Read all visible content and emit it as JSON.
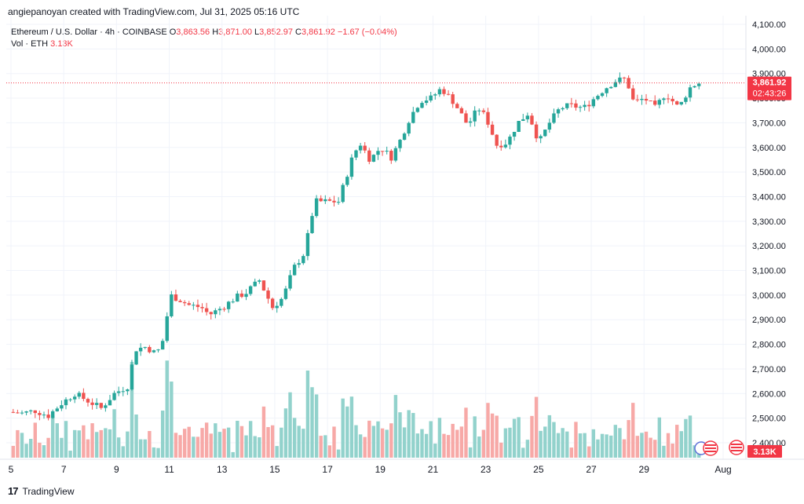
{
  "creator_line": "angiepanoyan created with TradingView.com, Jul 31, 2025 05:16 UTC",
  "legend": {
    "symbol": "Ethereum / U.S. Dollar · 4h · COINBASE",
    "o_label": "O",
    "o": "3,863.56",
    "h_label": "H",
    "h": "3,871.00",
    "l_label": "L",
    "l": "3,852.97",
    "c_label": "C",
    "c": "3,861.92",
    "change": "−1.67 (−0.04%)",
    "vol_label": "Vol · ETH",
    "vol": "3.13K"
  },
  "footer": {
    "brand": "TradingView",
    "logo_text": "17"
  },
  "colors": {
    "up": "#26a69a",
    "down": "#ef5350",
    "up_vol": "#92d2cc",
    "down_vol": "#f7a9a7",
    "price_line": "#f23645"
  },
  "chart_data": {
    "type": "candlestick",
    "interval": "4h",
    "y_axis": {
      "min": 2400,
      "max": 4100,
      "ticks": [
        "4,100.00",
        "4,000.00",
        "3,900.00",
        "3,800.00",
        "3,700.00",
        "3,600.00",
        "3,500.00",
        "3,400.00",
        "3,300.00",
        "3,200.00",
        "3,100.00",
        "3,000.00",
        "2,900.00",
        "2,800.00",
        "2,700.00",
        "2,600.00",
        "2,500.00",
        "2,400.00"
      ]
    },
    "x_ticks": [
      "5",
      "7",
      "9",
      "11",
      "13",
      "15",
      "17",
      "19",
      "21",
      "23",
      "25",
      "27",
      "29",
      "Aug"
    ],
    "x_tick_days": [
      5,
      7,
      9,
      11,
      13,
      15,
      17,
      19,
      21,
      23,
      25,
      27,
      29,
      32
    ],
    "x_range_days": [
      5,
      32.4
    ],
    "last_price": {
      "value": 3861.92,
      "label": "3,861.92",
      "countdown": "02:43:26"
    },
    "volume_label": "3.13K",
    "anchors": [
      [
        5.0,
        2525
      ],
      [
        5.5,
        2520
      ],
      [
        6.0,
        2530
      ],
      [
        6.5,
        2510
      ],
      [
        7.0,
        2560
      ],
      [
        7.5,
        2600
      ],
      [
        8.0,
        2570
      ],
      [
        8.5,
        2540
      ],
      [
        9.0,
        2600
      ],
      [
        9.5,
        2630
      ],
      [
        9.8,
        2780
      ],
      [
        10.2,
        2790
      ],
      [
        10.6,
        2760
      ],
      [
        10.9,
        2830
      ],
      [
        11.1,
        3000
      ],
      [
        11.5,
        2980
      ],
      [
        11.8,
        2960
      ],
      [
        12.3,
        2950
      ],
      [
        12.6,
        2920
      ],
      [
        13.1,
        2950
      ],
      [
        13.6,
        2990
      ],
      [
        14.0,
        3010
      ],
      [
        14.5,
        3060
      ],
      [
        15.0,
        2950
      ],
      [
        15.4,
        2990
      ],
      [
        15.8,
        3110
      ],
      [
        16.2,
        3170
      ],
      [
        16.6,
        3380
      ],
      [
        17.1,
        3380
      ],
      [
        17.5,
        3380
      ],
      [
        18.0,
        3550
      ],
      [
        18.3,
        3620
      ],
      [
        18.7,
        3550
      ],
      [
        19.1,
        3600
      ],
      [
        19.5,
        3560
      ],
      [
        19.8,
        3620
      ],
      [
        20.2,
        3720
      ],
      [
        20.6,
        3790
      ],
      [
        21.0,
        3800
      ],
      [
        21.4,
        3840
      ],
      [
        21.9,
        3780
      ],
      [
        22.4,
        3690
      ],
      [
        22.8,
        3760
      ],
      [
        23.1,
        3720
      ],
      [
        23.5,
        3610
      ],
      [
        23.9,
        3620
      ],
      [
        24.3,
        3700
      ],
      [
        24.7,
        3740
      ],
      [
        25.1,
        3620
      ],
      [
        25.5,
        3700
      ],
      [
        25.9,
        3760
      ],
      [
        26.3,
        3770
      ],
      [
        26.8,
        3760
      ],
      [
        27.2,
        3800
      ],
      [
        27.6,
        3840
      ],
      [
        28.0,
        3870
      ],
      [
        28.4,
        3880
      ],
      [
        28.7,
        3780
      ],
      [
        29.1,
        3800
      ],
      [
        29.5,
        3760
      ],
      [
        29.9,
        3820
      ],
      [
        30.4,
        3760
      ],
      [
        30.8,
        3840
      ],
      [
        31.1,
        3862
      ]
    ]
  }
}
